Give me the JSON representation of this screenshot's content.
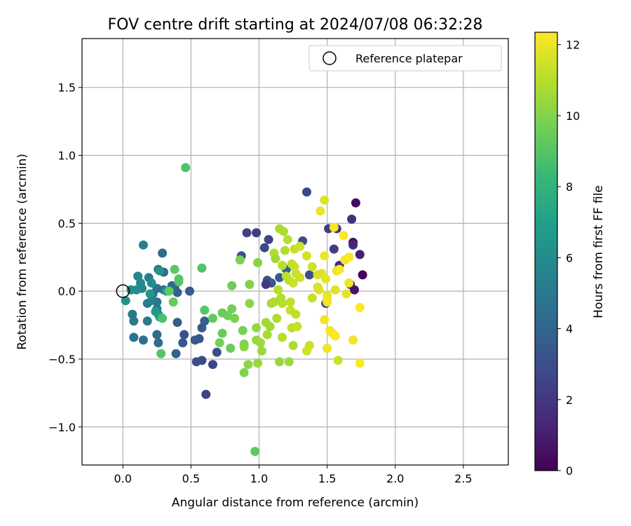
{
  "chart_data": {
    "type": "scatter",
    "title": "FOV centre drift starting at 2024/07/08 06:32:28",
    "xlabel": "Angular distance from reference (arcmin)",
    "ylabel": "Rotation from reference (arcmin)",
    "xlim": [
      -0.3,
      2.83
    ],
    "ylim": [
      -1.28,
      1.86
    ],
    "xticks": [
      0.0,
      0.5,
      1.0,
      1.5,
      2.0,
      2.5
    ],
    "xtick_labels": [
      "0.0",
      "0.5",
      "1.0",
      "1.5",
      "2.0",
      "2.5"
    ],
    "yticks": [
      -1.0,
      -0.5,
      0.0,
      0.5,
      1.0,
      1.5
    ],
    "ytick_labels": [
      "−1.0",
      "−0.5",
      "0.0",
      "0.5",
      "1.0",
      "1.5"
    ],
    "grid": true,
    "legend": {
      "placement": "top-right",
      "entries": [
        "Reference platepar"
      ]
    },
    "reference_point": {
      "x": 0.0,
      "y": 0.0
    },
    "colorbar": {
      "label": "Hours from first FF file",
      "colormap": "viridis",
      "min": 0,
      "max": 12.35,
      "ticks": [
        0,
        2,
        4,
        6,
        8,
        10,
        12
      ],
      "tick_labels": [
        "0",
        "2",
        "4",
        "6",
        "8",
        "10",
        "12"
      ]
    },
    "colormap_stops": [
      "#440154",
      "#482878",
      "#3e4989",
      "#31688e",
      "#26828e",
      "#1f9e89",
      "#35b779",
      "#6ece58",
      "#b5de2b",
      "#fde725"
    ],
    "points": [
      [
        1.76,
        0.12,
        0.1
      ],
      [
        1.71,
        0.65,
        0.3
      ],
      [
        1.69,
        0.36,
        0.5
      ],
      [
        1.7,
        0.01,
        0.7
      ],
      [
        1.67,
        0.05,
        0.9
      ],
      [
        1.74,
        0.27,
        1.1
      ],
      [
        1.69,
        0.34,
        1.3
      ],
      [
        1.59,
        0.19,
        1.5
      ],
      [
        1.68,
        0.53,
        1.7
      ],
      [
        1.57,
        0.46,
        1.9
      ],
      [
        1.55,
        0.31,
        2.1
      ],
      [
        1.51,
        0.46,
        2.3
      ],
      [
        1.49,
        -0.09,
        2.5
      ],
      [
        1.35,
        0.73,
        2.7
      ],
      [
        1.32,
        0.37,
        2.9
      ],
      [
        1.37,
        0.12,
        3.1
      ],
      [
        0.98,
        0.43,
        2.2
      ],
      [
        0.91,
        0.43,
        2.4
      ],
      [
        1.07,
        0.38,
        2.6
      ],
      [
        1.04,
        0.32,
        2.8
      ],
      [
        0.87,
        0.26,
        3.0
      ],
      [
        1.06,
        0.08,
        3.2
      ],
      [
        1.09,
        0.06,
        3.4
      ],
      [
        1.15,
        0.1,
        3.6
      ],
      [
        1.2,
        0.16,
        3.8
      ],
      [
        1.05,
        0.05,
        2.0
      ],
      [
        0.61,
        -0.76,
        2.4
      ],
      [
        0.66,
        -0.54,
        2.6
      ],
      [
        0.58,
        -0.51,
        2.8
      ],
      [
        0.54,
        -0.52,
        3.0
      ],
      [
        0.69,
        -0.45,
        2.9
      ],
      [
        0.56,
        -0.35,
        3.2
      ],
      [
        0.53,
        -0.36,
        3.4
      ],
      [
        0.45,
        -0.32,
        3.1
      ],
      [
        0.44,
        -0.38,
        3.3
      ],
      [
        0.58,
        -0.27,
        3.5
      ],
      [
        0.6,
        -0.22,
        3.7
      ],
      [
        0.4,
        -0.23,
        3.6
      ],
      [
        0.49,
        0.0,
        3.5
      ],
      [
        0.4,
        -0.01,
        3.8
      ],
      [
        0.38,
        0.03,
        4.0
      ],
      [
        0.39,
        -0.46,
        3.9
      ],
      [
        0.36,
        0.04,
        4.1
      ],
      [
        0.3,
        0.14,
        4.2
      ],
      [
        0.29,
        0.28,
        4.3
      ],
      [
        0.26,
        0.16,
        4.4
      ],
      [
        0.3,
        0.01,
        4.5
      ],
      [
        0.25,
        0.02,
        4.6
      ],
      [
        0.22,
        -0.02,
        4.7
      ],
      [
        0.25,
        -0.08,
        4.8
      ],
      [
        0.25,
        -0.13,
        4.9
      ],
      [
        0.25,
        -0.32,
        4.2
      ],
      [
        0.26,
        -0.38,
        4.4
      ],
      [
        0.15,
        -0.36,
        4.6
      ],
      [
        0.08,
        -0.34,
        4.8
      ],
      [
        0.07,
        -0.17,
        4.9
      ],
      [
        0.08,
        -0.22,
        5.0
      ],
      [
        0.18,
        -0.22,
        5.1
      ],
      [
        0.18,
        -0.09,
        5.2
      ],
      [
        0.21,
        -0.07,
        5.3
      ],
      [
        0.19,
        0.1,
        5.4
      ],
      [
        0.15,
        0.34,
        5.5
      ],
      [
        0.11,
        0.11,
        5.6
      ],
      [
        0.14,
        0.02,
        5.7
      ],
      [
        0.06,
        0.01,
        5.8
      ],
      [
        0.13,
        0.06,
        5.9
      ],
      [
        0.21,
        0.06,
        6.0
      ],
      [
        0.1,
        0.01,
        6.1
      ],
      [
        0.02,
        -0.07,
        6.2
      ],
      [
        0.27,
        0.15,
        6.3
      ],
      [
        0.26,
        -0.17,
        6.4
      ],
      [
        0.24,
        -0.15,
        6.5
      ],
      [
        0.2,
        -0.02,
        6.6
      ],
      [
        0.32,
        0.0,
        6.8
      ],
      [
        0.27,
        -0.19,
        7.0
      ],
      [
        0.46,
        0.91,
        8.9
      ],
      [
        0.58,
        0.17,
        8.9
      ],
      [
        0.41,
        0.07,
        9.0
      ],
      [
        0.41,
        0.09,
        9.1
      ],
      [
        0.38,
        0.16,
        9.2
      ],
      [
        0.34,
        0.0,
        9.3
      ],
      [
        0.37,
        -0.08,
        9.4
      ],
      [
        0.29,
        -0.2,
        8.8
      ],
      [
        0.28,
        -0.46,
        9.0
      ],
      [
        0.6,
        -0.14,
        9.1
      ],
      [
        0.66,
        -0.2,
        9.3
      ],
      [
        0.73,
        -0.31,
        9.4
      ],
      [
        0.73,
        -0.16,
        9.5
      ],
      [
        0.77,
        -0.18,
        9.6
      ],
      [
        0.8,
        -0.13,
        9.7
      ],
      [
        0.82,
        -0.2,
        9.8
      ],
      [
        0.79,
        -0.42,
        9.5
      ],
      [
        0.71,
        -0.38,
        9.7
      ],
      [
        0.8,
        0.04,
        9.6
      ],
      [
        0.86,
        0.23,
        9.9
      ],
      [
        0.93,
        0.05,
        10.0
      ],
      [
        0.88,
        -0.29,
        9.8
      ],
      [
        0.89,
        -0.39,
        9.9
      ],
      [
        0.89,
        -0.41,
        10.1
      ],
      [
        0.92,
        -0.54,
        10.2
      ],
      [
        0.89,
        -0.6,
        10.0
      ],
      [
        0.97,
        -1.18,
        9.2
      ],
      [
        0.99,
        0.21,
        10.1
      ],
      [
        0.98,
        -0.27,
        10.3
      ],
      [
        0.98,
        -0.36,
        10.4
      ],
      [
        1.01,
        -0.38,
        10.5
      ],
      [
        1.02,
        -0.44,
        10.5
      ],
      [
        0.93,
        -0.09,
        10.2
      ],
      [
        0.99,
        -0.53,
        10.4
      ],
      [
        1.05,
        -0.23,
        10.6
      ],
      [
        1.06,
        -0.32,
        10.7
      ],
      [
        1.08,
        -0.26,
        10.6
      ],
      [
        1.09,
        -0.09,
        10.7
      ],
      [
        1.11,
        -0.08,
        10.8
      ],
      [
        1.13,
        -0.2,
        10.8
      ],
      [
        1.11,
        0.28,
        10.9
      ],
      [
        1.12,
        0.24,
        10.6
      ],
      [
        1.15,
        0.46,
        10.7
      ],
      [
        1.18,
        0.44,
        10.8
      ],
      [
        1.19,
        0.3,
        10.9
      ],
      [
        1.14,
        0.01,
        11.0
      ],
      [
        1.16,
        -0.05,
        10.9
      ],
      [
        1.17,
        -0.09,
        11.0
      ],
      [
        1.17,
        0.19,
        11.1
      ],
      [
        1.17,
        -0.34,
        11.0
      ],
      [
        1.15,
        -0.52,
        10.4
      ],
      [
        1.22,
        -0.52,
        10.5
      ],
      [
        1.2,
        0.11,
        11.1
      ],
      [
        1.21,
        0.38,
        11.0
      ],
      [
        1.22,
        0.08,
        11.2
      ],
      [
        1.24,
        0.2,
        11.2
      ],
      [
        1.23,
        -0.08,
        11.2
      ],
      [
        1.24,
        -0.27,
        11.1
      ],
      [
        1.25,
        -0.4,
        10.8
      ],
      [
        1.23,
        -0.14,
        11.3
      ],
      [
        1.26,
        0.31,
        11.3
      ],
      [
        1.26,
        0.18,
        11.3
      ],
      [
        1.27,
        -0.17,
        11.2
      ],
      [
        1.28,
        -0.26,
        11.3
      ],
      [
        1.25,
        0.06,
        11.4
      ],
      [
        1.3,
        0.33,
        11.4
      ],
      [
        1.27,
        0.13,
        11.4
      ],
      [
        1.3,
        0.1,
        11.5
      ],
      [
        1.35,
        0.26,
        11.5
      ],
      [
        1.39,
        0.18,
        11.5
      ],
      [
        1.39,
        -0.05,
        11.3
      ],
      [
        1.37,
        -0.4,
        11.4
      ],
      [
        1.35,
        -0.44,
        11.5
      ],
      [
        1.43,
        0.03,
        11.6
      ],
      [
        1.44,
        0.01,
        11.7
      ],
      [
        1.48,
        0.67,
        11.7
      ],
      [
        1.45,
        0.59,
        12.0
      ],
      [
        1.46,
        0.13,
        11.8
      ],
      [
        1.49,
        0.09,
        11.9
      ],
      [
        1.48,
        0.26,
        12.0
      ],
      [
        1.5,
        -0.03,
        11.9
      ],
      [
        1.5,
        -0.08,
        12.0
      ],
      [
        1.5,
        -0.06,
        12.1
      ],
      [
        1.48,
        -0.21,
        12.1
      ],
      [
        1.5,
        -0.42,
        12.1
      ],
      [
        1.52,
        -0.29,
        12.2
      ],
      [
        1.54,
        -0.31,
        12.2
      ],
      [
        1.55,
        0.47,
        12.2
      ],
      [
        1.57,
        0.15,
        12.0
      ],
      [
        1.59,
        0.16,
        12.3
      ],
      [
        1.56,
        -0.33,
        12.3
      ],
      [
        1.58,
        -0.51,
        11.4
      ],
      [
        1.62,
        0.41,
        12.3
      ],
      [
        1.63,
        0.23,
        12.2
      ],
      [
        1.66,
        0.25,
        12.3
      ],
      [
        1.66,
        0.06,
        12.0
      ],
      [
        1.64,
        -0.02,
        11.9
      ],
      [
        1.69,
        -0.36,
        12.1
      ],
      [
        1.74,
        -0.53,
        12.3
      ],
      [
        1.74,
        -0.12,
        12.3
      ],
      [
        1.56,
        0.01,
        11.8
      ],
      [
        1.43,
        0.12,
        11.6
      ]
    ]
  }
}
